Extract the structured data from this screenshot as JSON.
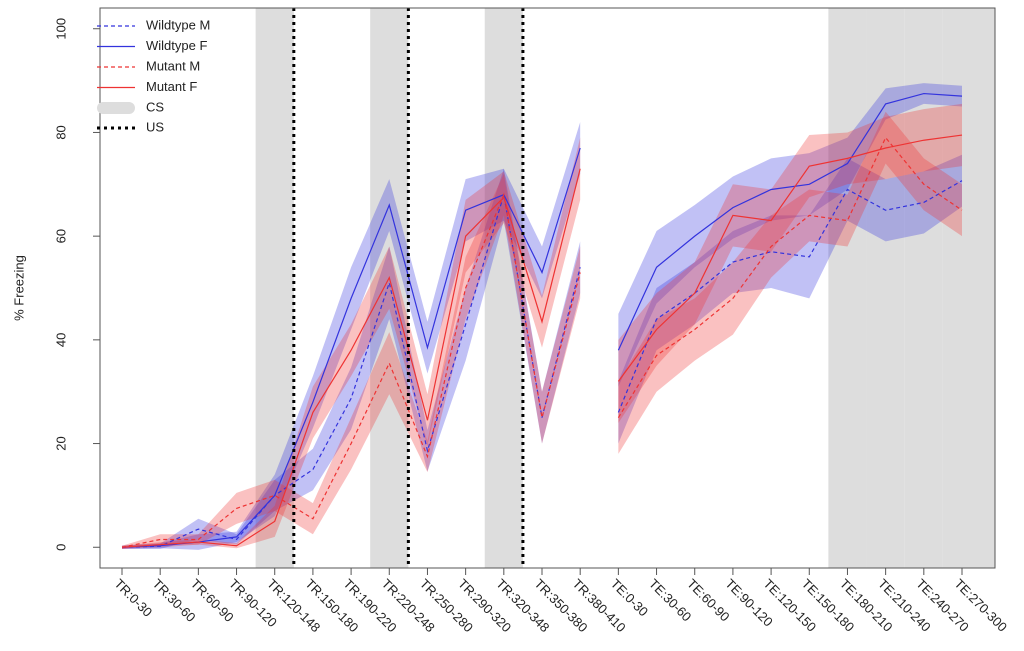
{
  "chart_data": {
    "type": "line",
    "y_label": "% Freezing",
    "categories": [
      "TR:0-30",
      "TR:30-60",
      "TR:60-90",
      "TR:90-120",
      "TR:120-148",
      "TR:150-180",
      "TR:190-220",
      "TR:220-248",
      "TR:250-280",
      "TR:290-320",
      "TR:320-348",
      "TR:350-380",
      "TR:380-410",
      "TE:0-30",
      "TE:30-60",
      "TE:60-90",
      "TE:90-120",
      "TE:120-150",
      "TE:150-180",
      "TE:180-210",
      "TE:210-240",
      "TE:240-270",
      "TE:270-300"
    ],
    "series": [
      {
        "name": "Wildtype M",
        "color": "#3333dd",
        "dash": true,
        "values": [
          0,
          0.2,
          3.5,
          1.5,
          10,
          15,
          28.7,
          51,
          18.6,
          43,
          68,
          25,
          54,
          26,
          44,
          49,
          55,
          57,
          56,
          69,
          65,
          66.5,
          70.7
        ],
        "errors": [
          0.3,
          0.5,
          2,
          1,
          3,
          4,
          6,
          7,
          4,
          7,
          5,
          5,
          5,
          6,
          6,
          6,
          6,
          7,
          8,
          6,
          6,
          6,
          5
        ]
      },
      {
        "name": "Wildtype F",
        "color": "#3333dd",
        "dash": false,
        "values": [
          0,
          0.3,
          1,
          2,
          10,
          28,
          48,
          66,
          38.5,
          65,
          68,
          53,
          77,
          38,
          54,
          60,
          65.5,
          69,
          70,
          74,
          85.5,
          87.5,
          87
        ],
        "errors": [
          0.3,
          0.5,
          1.5,
          1,
          4,
          5,
          6,
          5,
          5,
          6,
          5,
          5,
          5,
          7,
          7,
          6,
          6,
          6,
          6,
          5,
          3,
          2,
          2
        ]
      },
      {
        "name": "Mutant M",
        "color": "#ee3333",
        "dash": true,
        "values": [
          0,
          1.5,
          1.5,
          7.5,
          10,
          5.5,
          20,
          35.5,
          17.5,
          50,
          68,
          25,
          53,
          25,
          37,
          42,
          48,
          58,
          64,
          63,
          79,
          70,
          65
        ],
        "errors": [
          0.3,
          1,
          1,
          3,
          3,
          3,
          5,
          6,
          3,
          6,
          4,
          5,
          5,
          7,
          7,
          6,
          7,
          6,
          5,
          5,
          5,
          5,
          5
        ]
      },
      {
        "name": "Mutant F",
        "color": "#ee3333",
        "dash": false,
        "values": [
          0,
          0.5,
          1,
          0.3,
          5,
          26,
          38,
          52,
          24.5,
          60,
          67.5,
          43.5,
          73,
          32,
          42,
          49,
          64,
          63,
          73.5,
          75,
          77,
          78.5,
          79.5
        ],
        "errors": [
          0.3,
          0.5,
          0.5,
          0.5,
          3,
          5,
          5,
          6,
          5,
          7,
          5,
          5,
          6,
          8,
          7,
          6,
          6,
          6,
          6,
          5,
          6,
          6,
          6
        ]
      }
    ],
    "cs": {
      "name": "CS",
      "color": "#dddddd",
      "categories": [
        "TR:120-148",
        "TR:220-248",
        "TR:320-348",
        "TE:180-210",
        "TE:210-240",
        "TE:240-270",
        "TE:270-300"
      ]
    },
    "us": {
      "name": "US",
      "color": "#000000",
      "categories": [
        "TR:120-148",
        "TR:220-248",
        "TR:320-348"
      ]
    },
    "ylim": [
      -4,
      104
    ],
    "yticks": [
      0,
      20,
      40,
      60,
      80,
      100
    ]
  }
}
